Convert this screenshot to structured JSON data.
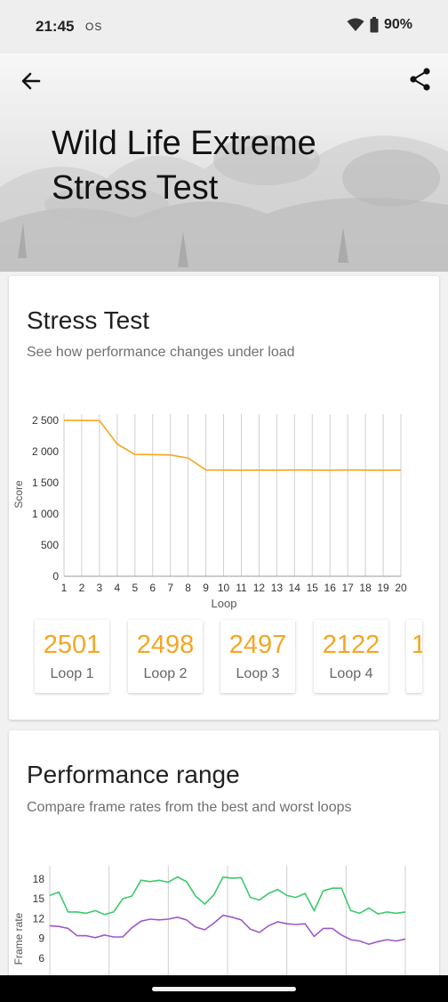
{
  "status": {
    "time": "21:45",
    "os_label": "OS",
    "battery": "90%"
  },
  "header": {
    "title": "Wild Life Extreme Stress Test",
    "back_icon": "arrow-back-icon",
    "share_icon": "share-icon"
  },
  "stress": {
    "title": "Stress Test",
    "subtitle": "See how performance changes under load",
    "loops": [
      {
        "value": "2501",
        "label": "Loop 1"
      },
      {
        "value": "2498",
        "label": "Loop 2"
      },
      {
        "value": "2497",
        "label": "Loop 3"
      },
      {
        "value": "2122",
        "label": "Loop 4"
      }
    ]
  },
  "range": {
    "title": "Performance range",
    "subtitle": "Compare frame rates from the best and worst loops"
  },
  "colors": {
    "accent": "#f5a623",
    "best": "#3cc96c",
    "worst": "#9c59c6"
  },
  "chart_data": [
    {
      "type": "line",
      "xlabel": "Loop",
      "ylabel": "Score",
      "x": [
        1,
        2,
        3,
        4,
        5,
        6,
        7,
        8,
        9,
        10,
        11,
        12,
        13,
        14,
        15,
        16,
        17,
        18,
        19,
        20
      ],
      "y_ticks": [
        "0",
        "500",
        "1 000",
        "1 500",
        "2 000",
        "2 500"
      ],
      "ylim": [
        0,
        2600
      ],
      "series": [
        {
          "values": [
            2501,
            2498,
            2497,
            2122,
            1955,
            1952,
            1946,
            1897,
            1705,
            1703,
            1702,
            1703,
            1702,
            1704,
            1703,
            1702,
            1704,
            1703,
            1702,
            1703
          ]
        }
      ]
    },
    {
      "type": "line",
      "ylabel": "Frame rate",
      "y_ticks": [
        "6",
        "9",
        "12",
        "15",
        "18"
      ],
      "ylim": [
        3,
        20
      ],
      "series": [
        {
          "values": [
            15.5,
            16,
            13,
            13,
            12.8,
            13.2,
            12.6,
            13,
            15,
            15.4,
            17.8,
            17.6,
            17.8,
            17.5,
            18.3,
            17.6,
            15.4,
            14.2,
            15.6,
            18.3,
            18.1,
            18.2,
            15.2,
            14.8,
            15.8,
            16.4,
            15.5,
            15.2,
            15.8,
            13.2,
            16.2,
            16.6,
            16.6,
            13.2,
            12.8,
            13.6,
            12.7,
            13,
            12.8,
            13
          ]
        },
        {
          "values": [
            10.9,
            10.8,
            10.5,
            9.4,
            9.4,
            9.1,
            9.5,
            9.2,
            9.2,
            10.6,
            11.6,
            11.9,
            11.8,
            11.9,
            12.2,
            11.8,
            10.7,
            10.3,
            11.3,
            12.5,
            12.2,
            11.8,
            10.4,
            9.9,
            10.9,
            11.5,
            11.2,
            11.1,
            11.2,
            9.3,
            10.5,
            10.5,
            9.5,
            8.8,
            8.6,
            8.1,
            8.5,
            8.8,
            8.6,
            8.9
          ]
        }
      ]
    }
  ]
}
